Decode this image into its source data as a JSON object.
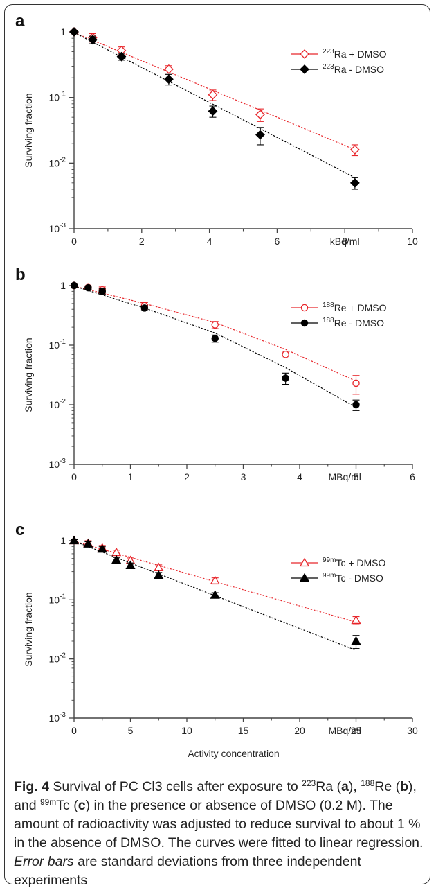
{
  "chart_data": [
    {
      "panel_label": "a",
      "type": "scatter",
      "x_unit_label": "kBq/ml",
      "ylabel": "Surviving fraction",
      "xlim": [
        0,
        10
      ],
      "x_ticks": [
        "0",
        "2",
        "4",
        "6",
        "8",
        "10"
      ],
      "y_scale": "log",
      "ylim": [
        0.001,
        1
      ],
      "y_ticks": [
        {
          "base": "10",
          "exp": "-3"
        },
        {
          "base": "10",
          "exp": "-2"
        },
        {
          "base": "10",
          "exp": "-1"
        },
        {
          "base": "1",
          "exp": ""
        }
      ],
      "legend_position": "top-right",
      "series": [
        {
          "legend_sup": "223",
          "legend_text": "Ra + DMSO",
          "marker": "diamond-open",
          "color": "#e8262b",
          "x": [
            0,
            0.55,
            1.4,
            2.8,
            4.1,
            5.5,
            8.3
          ],
          "y": [
            1.0,
            0.82,
            0.52,
            0.27,
            0.11,
            0.055,
            0.016
          ],
          "err": [
            0.04,
            0.12,
            0.07,
            0.035,
            0.02,
            0.012,
            0.003
          ],
          "fit": [
            [
              0,
              0.98
            ],
            [
              8.3,
              0.016
            ]
          ]
        },
        {
          "legend_sup": "223",
          "legend_text": "Ra - DMSO",
          "marker": "diamond-filled",
          "color": "#000000",
          "x": [
            0,
            0.55,
            1.4,
            2.8,
            4.1,
            5.5,
            8.3
          ],
          "y": [
            1.0,
            0.76,
            0.42,
            0.19,
            0.062,
            0.027,
            0.005
          ],
          "err": [
            0.04,
            0.1,
            0.05,
            0.035,
            0.012,
            0.008,
            0.001
          ],
          "fit": [
            [
              0,
              0.98
            ],
            [
              8.3,
              0.006
            ]
          ]
        }
      ]
    },
    {
      "panel_label": "b",
      "type": "scatter",
      "x_unit_label": "MBq/ml",
      "ylabel": "Surviving fraction",
      "xlim": [
        0,
        6
      ],
      "x_ticks": [
        "0",
        "1",
        "2",
        "3",
        "4",
        "5",
        "6"
      ],
      "y_scale": "log",
      "ylim": [
        0.001,
        1
      ],
      "y_ticks": [
        {
          "base": "10",
          "exp": "-3"
        },
        {
          "base": "10",
          "exp": "-2"
        },
        {
          "base": "10",
          "exp": "-1"
        },
        {
          "base": "1",
          "exp": ""
        }
      ],
      "legend_position": "top-right",
      "series": [
        {
          "legend_sup": "188",
          "legend_text": "Re + DMSO",
          "marker": "circle-open",
          "color": "#e8262b",
          "x": [
            0,
            0.25,
            0.5,
            1.25,
            2.5,
            3.75,
            5.0
          ],
          "y": [
            1.0,
            0.93,
            0.85,
            0.46,
            0.22,
            0.07,
            0.023
          ],
          "err": [
            0.04,
            0.06,
            0.1,
            0.06,
            0.03,
            0.009,
            0.008
          ],
          "fit": [
            [
              0,
              0.98
            ],
            [
              1.25,
              0.5
            ],
            [
              2.5,
              0.24
            ],
            [
              3.75,
              0.085
            ],
            [
              5.0,
              0.025
            ]
          ]
        },
        {
          "legend_sup": "188",
          "legend_text": "Re - DMSO",
          "marker": "circle-filled",
          "color": "#000000",
          "x": [
            0,
            0.25,
            0.5,
            1.25,
            2.5,
            3.75,
            5.0
          ],
          "y": [
            1.0,
            0.92,
            0.8,
            0.42,
            0.13,
            0.028,
            0.01
          ],
          "err": [
            0.04,
            0.06,
            0.08,
            0.04,
            0.018,
            0.006,
            0.002
          ],
          "fit": [
            [
              0,
              0.98
            ],
            [
              1.25,
              0.42
            ],
            [
              2.5,
              0.16
            ],
            [
              3.75,
              0.042
            ],
            [
              5.0,
              0.009
            ]
          ]
        }
      ]
    },
    {
      "panel_label": "c",
      "type": "scatter",
      "x_unit_label": "MBq/ml",
      "xlabel": "Activity concentration",
      "ylabel": "Surviving fraction",
      "xlim": [
        0,
        30
      ],
      "x_ticks": [
        "0",
        "5",
        "10",
        "15",
        "20",
        "25",
        "30"
      ],
      "y_scale": "log",
      "ylim": [
        0.001,
        1
      ],
      "y_ticks": [
        {
          "base": "10",
          "exp": "-3"
        },
        {
          "base": "10",
          "exp": "-2"
        },
        {
          "base": "10",
          "exp": "-1"
        },
        {
          "base": "1",
          "exp": ""
        }
      ],
      "legend_position": "top-right",
      "series": [
        {
          "legend_sup": "99m",
          "legend_text": "Tc + DMSO",
          "marker": "triangle-open",
          "color": "#e8262b",
          "x": [
            0,
            1.25,
            2.5,
            3.75,
            5.0,
            7.5,
            12.5,
            25.0
          ],
          "y": [
            1.0,
            0.9,
            0.75,
            0.63,
            0.46,
            0.35,
            0.21,
            0.045
          ],
          "err": [
            0.04,
            0.1,
            0.08,
            0.06,
            0.05,
            0.04,
            0.025,
            0.007
          ],
          "fit": [
            [
              0,
              0.98
            ],
            [
              25.0,
              0.042
            ]
          ]
        },
        {
          "legend_sup": "99m",
          "legend_text": "Tc - DMSO",
          "marker": "triangle-filled",
          "color": "#000000",
          "x": [
            0,
            1.25,
            2.5,
            3.75,
            5.0,
            7.5,
            12.5,
            25.0
          ],
          "y": [
            1.0,
            0.88,
            0.72,
            0.47,
            0.38,
            0.26,
            0.12,
            0.02
          ],
          "err": [
            0.04,
            0.08,
            0.07,
            0.05,
            0.04,
            0.03,
            0.012,
            0.005
          ],
          "fit": [
            [
              0,
              0.98
            ],
            [
              25.0,
              0.014
            ]
          ]
        }
      ]
    }
  ],
  "caption": {
    "fig_label": "Fig. 4",
    "t1": " Survival of PC Cl3 cells after exposure to ",
    "sup_ra": "223",
    "t2": "Ra (",
    "label_a": "a",
    "t3": "), ",
    "sup_re": "188",
    "t4": "Re (",
    "label_b": "b",
    "t5": "), and ",
    "sup_tc": "99m",
    "t6": "Tc (",
    "label_c": "c",
    "t7": ") in the presence or absence of DMSO (0.2 M). The amount of radioactivity was adjusted to reduce survival to about 1 % in the absence of DMSO. The curves were fitted to linear regression. ",
    "error_bars": "Error bars",
    "t8": " are standard deviations from three independent experiments"
  }
}
